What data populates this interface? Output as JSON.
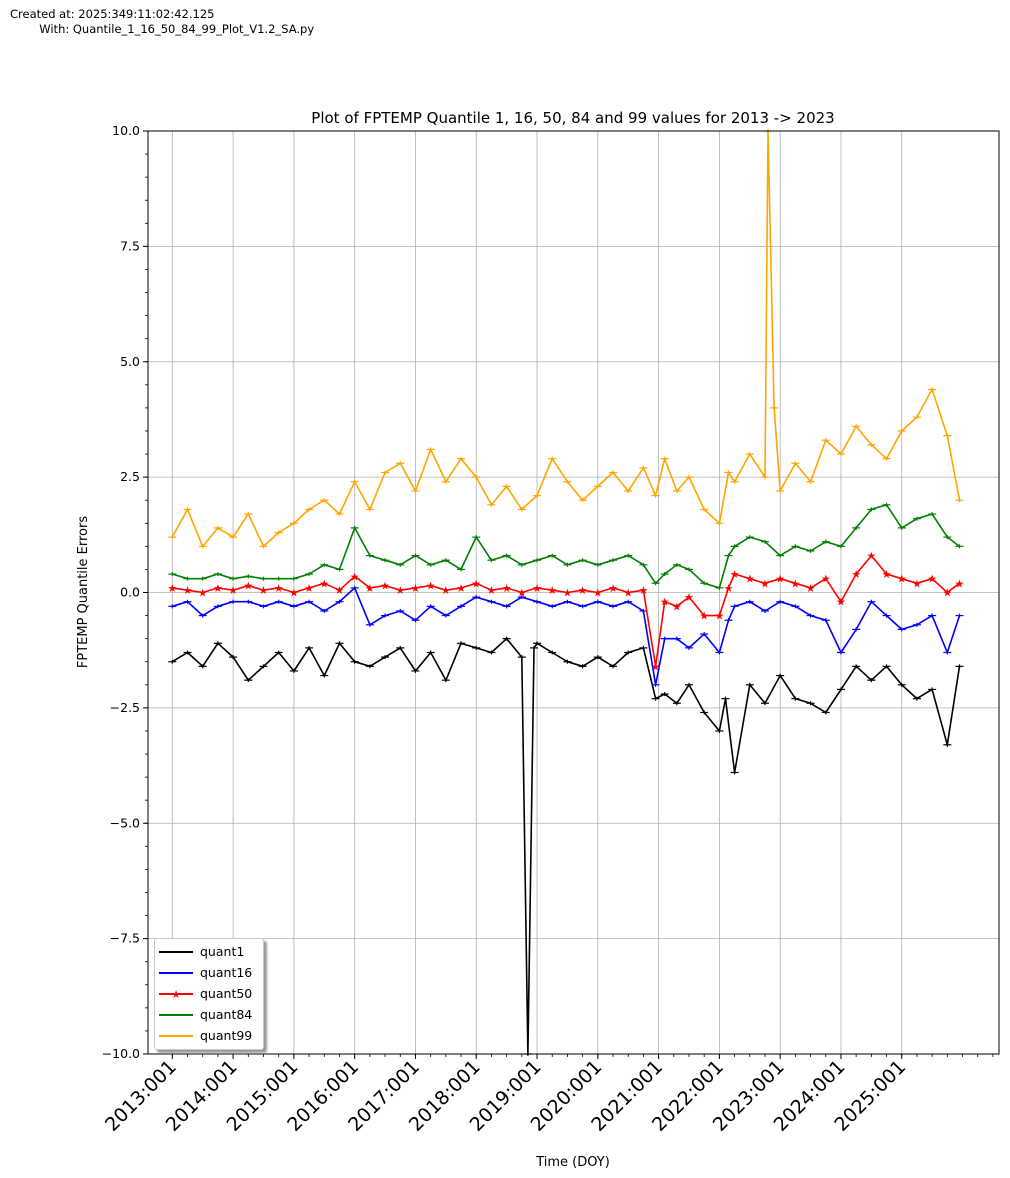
{
  "meta": {
    "created": "Created at: 2025:349:11:02:42.125",
    "with": "        With: Quantile_1_16_50_84_99_Plot_V1.2_SA.py"
  },
  "chart_data": {
    "type": "line",
    "title": "Plot of FPTEMP Quantile 1, 16, 50, 84 and 99  values for 2013 -> 2023",
    "xlabel": "Time (DOY)",
    "ylabel": "FPTEMP Quantile Errors",
    "ylim": [
      -10.0,
      10.0
    ],
    "yticks": [
      -10.0,
      -7.5,
      -5.0,
      -2.5,
      0.0,
      2.5,
      5.0,
      7.5,
      10.0
    ],
    "ytick_labels": [
      "−10.0",
      "−7.5",
      "−5.0",
      "−2.5",
      "0.0",
      "2.5",
      "5.0",
      "7.5",
      "10.0"
    ],
    "xlim": [
      2012.6,
      2026.6
    ],
    "xticks": [
      2013,
      2014,
      2015,
      2016,
      2017,
      2018,
      2019,
      2020,
      2021,
      2022,
      2023,
      2024,
      2025
    ],
    "xtick_labels": [
      "2013:001",
      "2014:001",
      "2015:001",
      "2016:001",
      "2017:001",
      "2018:001",
      "2019:001",
      "2020:001",
      "2021:001",
      "2022:001",
      "2023:001",
      "2024:001",
      "2025:001"
    ],
    "grid": true,
    "legend_position": "lower left",
    "series": [
      {
        "name": "quant1",
        "color": "#000000",
        "marker": "tick",
        "x": [
          2013.0,
          2013.25,
          2013.5,
          2013.75,
          2014.0,
          2014.25,
          2014.5,
          2014.75,
          2015.0,
          2015.25,
          2015.5,
          2015.75,
          2016.0,
          2016.25,
          2016.5,
          2016.75,
          2017.0,
          2017.25,
          2017.5,
          2017.75,
          2018.0,
          2018.25,
          2018.5,
          2018.75,
          2018.85,
          2018.95,
          2019.0,
          2019.25,
          2019.5,
          2019.75,
          2020.0,
          2020.25,
          2020.5,
          2020.75,
          2020.95,
          2021.1,
          2021.3,
          2021.5,
          2021.75,
          2022.0,
          2022.1,
          2022.25,
          2022.5,
          2022.75,
          2023.0,
          2023.25,
          2023.5,
          2023.75,
          2024.0,
          2024.25,
          2024.5,
          2024.75,
          2025.0,
          2025.25,
          2025.5,
          2025.75,
          2025.95
        ],
        "y": [
          -1.5,
          -1.3,
          -1.6,
          -1.1,
          -1.4,
          -1.9,
          -1.6,
          -1.3,
          -1.7,
          -1.2,
          -1.8,
          -1.1,
          -1.5,
          -1.6,
          -1.4,
          -1.2,
          -1.7,
          -1.3,
          -1.9,
          -1.1,
          -1.2,
          -1.3,
          -1.0,
          -1.4,
          -10.0,
          -1.2,
          -1.1,
          -1.3,
          -1.5,
          -1.6,
          -1.4,
          -1.6,
          -1.3,
          -1.2,
          -2.3,
          -2.2,
          -2.4,
          -2.0,
          -2.6,
          -3.0,
          -2.3,
          -3.9,
          -2.0,
          -2.4,
          -1.8,
          -2.3,
          -2.4,
          -2.6,
          -2.1,
          -1.6,
          -1.9,
          -1.6,
          -2.0,
          -2.3,
          -2.1,
          -3.3,
          -1.6
        ]
      },
      {
        "name": "quant16",
        "color": "#0000ff",
        "marker": "tick",
        "x": [
          2013.0,
          2013.25,
          2013.5,
          2013.75,
          2014.0,
          2014.25,
          2014.5,
          2014.75,
          2015.0,
          2015.25,
          2015.5,
          2015.75,
          2016.0,
          2016.25,
          2016.5,
          2016.75,
          2017.0,
          2017.25,
          2017.5,
          2017.75,
          2018.0,
          2018.25,
          2018.5,
          2018.75,
          2019.0,
          2019.25,
          2019.5,
          2019.75,
          2020.0,
          2020.25,
          2020.5,
          2020.75,
          2020.95,
          2021.1,
          2021.3,
          2021.5,
          2021.75,
          2022.0,
          2022.15,
          2022.25,
          2022.5,
          2022.75,
          2023.0,
          2023.25,
          2023.5,
          2023.75,
          2024.0,
          2024.25,
          2024.5,
          2024.75,
          2025.0,
          2025.25,
          2025.5,
          2025.75,
          2025.95
        ],
        "y": [
          -0.3,
          -0.2,
          -0.5,
          -0.3,
          -0.2,
          -0.2,
          -0.3,
          -0.2,
          -0.3,
          -0.2,
          -0.4,
          -0.2,
          0.1,
          -0.7,
          -0.5,
          -0.4,
          -0.6,
          -0.3,
          -0.5,
          -0.3,
          -0.1,
          -0.2,
          -0.3,
          -0.1,
          -0.2,
          -0.3,
          -0.2,
          -0.3,
          -0.2,
          -0.3,
          -0.2,
          -0.4,
          -2.0,
          -1.0,
          -1.0,
          -1.2,
          -0.9,
          -1.3,
          -0.6,
          -0.3,
          -0.2,
          -0.4,
          -0.2,
          -0.3,
          -0.5,
          -0.6,
          -1.3,
          -0.8,
          -0.2,
          -0.5,
          -0.8,
          -0.7,
          -0.5,
          -1.3,
          -0.5
        ]
      },
      {
        "name": "quant50",
        "color": "#ff0000",
        "marker": "star",
        "x": [
          2013.0,
          2013.25,
          2013.5,
          2013.75,
          2014.0,
          2014.25,
          2014.5,
          2014.75,
          2015.0,
          2015.25,
          2015.5,
          2015.75,
          2016.0,
          2016.25,
          2016.5,
          2016.75,
          2017.0,
          2017.25,
          2017.5,
          2017.75,
          2018.0,
          2018.25,
          2018.5,
          2018.75,
          2019.0,
          2019.25,
          2019.5,
          2019.75,
          2020.0,
          2020.25,
          2020.5,
          2020.75,
          2020.95,
          2021.1,
          2021.3,
          2021.5,
          2021.75,
          2022.0,
          2022.15,
          2022.25,
          2022.5,
          2022.75,
          2023.0,
          2023.25,
          2023.5,
          2023.75,
          2024.0,
          2024.25,
          2024.5,
          2024.75,
          2025.0,
          2025.25,
          2025.5,
          2025.75,
          2025.95
        ],
        "y": [
          0.1,
          0.05,
          0.0,
          0.1,
          0.05,
          0.15,
          0.05,
          0.1,
          0.0,
          0.1,
          0.2,
          0.05,
          0.35,
          0.1,
          0.15,
          0.05,
          0.1,
          0.15,
          0.05,
          0.1,
          0.2,
          0.05,
          0.1,
          0.0,
          0.1,
          0.05,
          0.0,
          0.05,
          0.0,
          0.1,
          0.0,
          0.05,
          -1.6,
          -0.2,
          -0.3,
          -0.1,
          -0.5,
          -0.5,
          0.1,
          0.4,
          0.3,
          0.2,
          0.3,
          0.2,
          0.1,
          0.3,
          -0.2,
          0.4,
          0.8,
          0.4,
          0.3,
          0.2,
          0.3,
          0.0,
          0.2
        ]
      },
      {
        "name": "quant84",
        "color": "#008000",
        "marker": "tick",
        "x": [
          2013.0,
          2013.25,
          2013.5,
          2013.75,
          2014.0,
          2014.25,
          2014.5,
          2014.75,
          2015.0,
          2015.25,
          2015.5,
          2015.75,
          2016.0,
          2016.25,
          2016.5,
          2016.75,
          2017.0,
          2017.25,
          2017.5,
          2017.75,
          2018.0,
          2018.25,
          2018.5,
          2018.75,
          2019.0,
          2019.25,
          2019.5,
          2019.75,
          2020.0,
          2020.25,
          2020.5,
          2020.75,
          2020.95,
          2021.1,
          2021.3,
          2021.5,
          2021.75,
          2022.0,
          2022.15,
          2022.25,
          2022.5,
          2022.75,
          2023.0,
          2023.25,
          2023.5,
          2023.75,
          2024.0,
          2024.25,
          2024.5,
          2024.75,
          2025.0,
          2025.25,
          2025.5,
          2025.75,
          2025.95
        ],
        "y": [
          0.4,
          0.3,
          0.3,
          0.4,
          0.3,
          0.35,
          0.3,
          0.3,
          0.3,
          0.4,
          0.6,
          0.5,
          1.4,
          0.8,
          0.7,
          0.6,
          0.8,
          0.6,
          0.7,
          0.5,
          1.2,
          0.7,
          0.8,
          0.6,
          0.7,
          0.8,
          0.6,
          0.7,
          0.6,
          0.7,
          0.8,
          0.6,
          0.2,
          0.4,
          0.6,
          0.5,
          0.2,
          0.1,
          0.8,
          1.0,
          1.2,
          1.1,
          0.8,
          1.0,
          0.9,
          1.1,
          1.0,
          1.4,
          1.8,
          1.9,
          1.4,
          1.6,
          1.7,
          1.2,
          1.0
        ]
      },
      {
        "name": "quant99",
        "color": "#ffa500",
        "marker": "tick",
        "x": [
          2013.0,
          2013.25,
          2013.5,
          2013.75,
          2014.0,
          2014.25,
          2014.5,
          2014.75,
          2015.0,
          2015.25,
          2015.5,
          2015.75,
          2016.0,
          2016.25,
          2016.5,
          2016.75,
          2017.0,
          2017.25,
          2017.5,
          2017.75,
          2018.0,
          2018.25,
          2018.5,
          2018.75,
          2019.0,
          2019.25,
          2019.5,
          2019.75,
          2020.0,
          2020.25,
          2020.5,
          2020.75,
          2020.95,
          2021.1,
          2021.3,
          2021.5,
          2021.75,
          2022.0,
          2022.15,
          2022.25,
          2022.5,
          2022.75,
          2022.8,
          2022.9,
          2023.0,
          2023.25,
          2023.5,
          2023.75,
          2024.0,
          2024.25,
          2024.5,
          2024.75,
          2025.0,
          2025.25,
          2025.5,
          2025.75,
          2025.95
        ],
        "y": [
          1.2,
          1.8,
          1.0,
          1.4,
          1.2,
          1.7,
          1.0,
          1.3,
          1.5,
          1.8,
          2.0,
          1.7,
          2.4,
          1.8,
          2.6,
          2.8,
          2.2,
          3.1,
          2.4,
          2.9,
          2.5,
          1.9,
          2.3,
          1.8,
          2.1,
          2.9,
          2.4,
          2.0,
          2.3,
          2.6,
          2.2,
          2.7,
          2.1,
          2.9,
          2.2,
          2.5,
          1.8,
          1.5,
          2.6,
          2.4,
          3.0,
          2.5,
          10.0,
          4.0,
          2.2,
          2.8,
          2.4,
          3.3,
          3.0,
          3.6,
          3.2,
          2.9,
          3.5,
          3.8,
          4.4,
          3.4,
          2.0
        ]
      }
    ]
  },
  "legend": {
    "items": [
      {
        "label": "quant1"
      },
      {
        "label": "quant16"
      },
      {
        "label": "quant50"
      },
      {
        "label": "quant84"
      },
      {
        "label": "quant99"
      }
    ]
  }
}
